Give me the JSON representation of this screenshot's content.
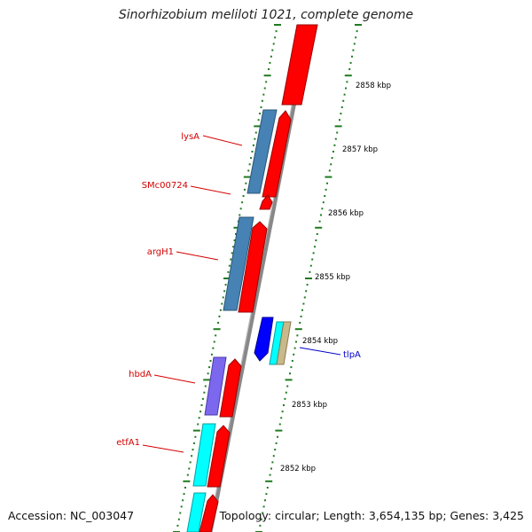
{
  "title": "Sinorhizobium meliloti 1021, complete genome",
  "footer": {
    "accession": "Accession: NC_003047",
    "topology": "Topology: circular; Length: 3,654,135 bp; Genes: 3,425"
  },
  "colors": {
    "forward_cds": "#ff0000",
    "rna_blue": "#4682b4",
    "rna_violet": "#7b68ee",
    "rna_cyan": "#00ffff",
    "rna_navy": "#0000ff",
    "rna_tan": "#c8b88a",
    "backbone": "#888888",
    "ticks": "#1f7a1f",
    "label_red": "#d40000",
    "label_blue": "#0000cc"
  },
  "ruler_labels": [
    "2858 kbp",
    "2857 kbp",
    "2856 kbp",
    "2855 kbp",
    "2854 kbp",
    "2853 kbp",
    "2852 kbp"
  ],
  "gene_labels": [
    {
      "name": "lysA",
      "color": "red"
    },
    {
      "name": "SMc00724",
      "color": "red"
    },
    {
      "name": "argH1",
      "color": "red"
    },
    {
      "name": "hbdA",
      "color": "red"
    },
    {
      "name": "etfA1",
      "color": "red"
    },
    {
      "name": "tlpA",
      "color": "blue"
    }
  ]
}
